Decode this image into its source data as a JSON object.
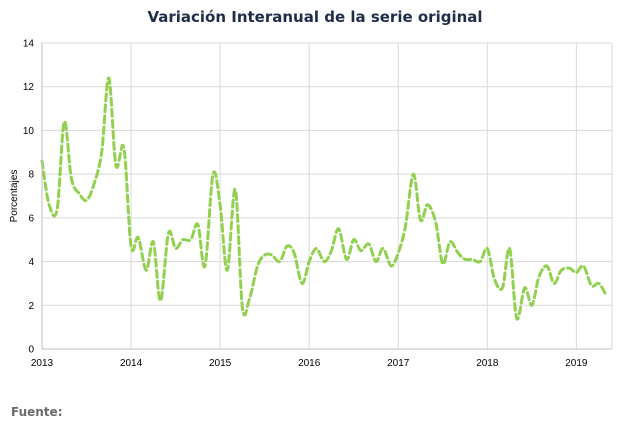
{
  "chart_data": {
    "type": "line",
    "title": "Variación Interanual de la serie original",
    "xlabel": "",
    "ylabel": "Porcentajes",
    "ylim": [
      0,
      14
    ],
    "xlim": [
      2013,
      2019.4
    ],
    "yticks": [
      0,
      2,
      4,
      6,
      8,
      10,
      12,
      14
    ],
    "xticks": [
      2013,
      2014,
      2015,
      2016,
      2017,
      2018,
      2019
    ],
    "grid": true,
    "legend": "none",
    "series": [
      {
        "color": "#92d050",
        "style": "dashed",
        "x": [
          2013.0,
          2013.08,
          2013.17,
          2013.25,
          2013.33,
          2013.42,
          2013.5,
          2013.58,
          2013.67,
          2013.75,
          2013.83,
          2013.92,
          2014.0,
          2014.08,
          2014.17,
          2014.25,
          2014.33,
          2014.42,
          2014.5,
          2014.58,
          2014.67,
          2014.75,
          2014.83,
          2014.92,
          2015.0,
          2015.08,
          2015.17,
          2015.25,
          2015.33,
          2015.42,
          2015.5,
          2015.58,
          2015.67,
          2015.75,
          2015.83,
          2015.92,
          2016.0,
          2016.08,
          2016.17,
          2016.25,
          2016.33,
          2016.42,
          2016.5,
          2016.58,
          2016.67,
          2016.75,
          2016.83,
          2016.92,
          2017.0,
          2017.08,
          2017.17,
          2017.25,
          2017.33,
          2017.42,
          2017.5,
          2017.58,
          2017.67,
          2017.75,
          2017.83,
          2017.92,
          2018.0,
          2018.08,
          2018.17,
          2018.25,
          2018.33,
          2018.42,
          2018.5,
          2018.58,
          2018.67,
          2018.75,
          2018.83,
          2018.92,
          2019.0,
          2019.08,
          2019.17,
          2019.25,
          2019.33
        ],
        "y": [
          8.6,
          6.6,
          6.4,
          10.4,
          7.8,
          7.1,
          6.8,
          7.5,
          9.0,
          12.4,
          8.4,
          9.2,
          4.7,
          5.1,
          3.6,
          4.9,
          2.2,
          5.3,
          4.6,
          5.0,
          5.0,
          5.7,
          3.8,
          8.0,
          6.6,
          3.6,
          7.3,
          1.9,
          2.3,
          3.8,
          4.3,
          4.3,
          4.0,
          4.7,
          4.4,
          3.0,
          4.0,
          4.6,
          4.0,
          4.5,
          5.5,
          4.1,
          5.0,
          4.5,
          4.8,
          4.0,
          4.6,
          3.8,
          4.4,
          5.6,
          8.0,
          5.9,
          6.6,
          5.8,
          3.9,
          4.9,
          4.4,
          4.1,
          4.1,
          4.0,
          4.6,
          3.2,
          2.8,
          4.6,
          1.4,
          2.8,
          2.0,
          3.3,
          3.8,
          3.0,
          3.6,
          3.7,
          3.5,
          3.8,
          2.9,
          3.0,
          2.5
        ]
      }
    ]
  },
  "footer": {
    "source_label": "Fuente:"
  }
}
